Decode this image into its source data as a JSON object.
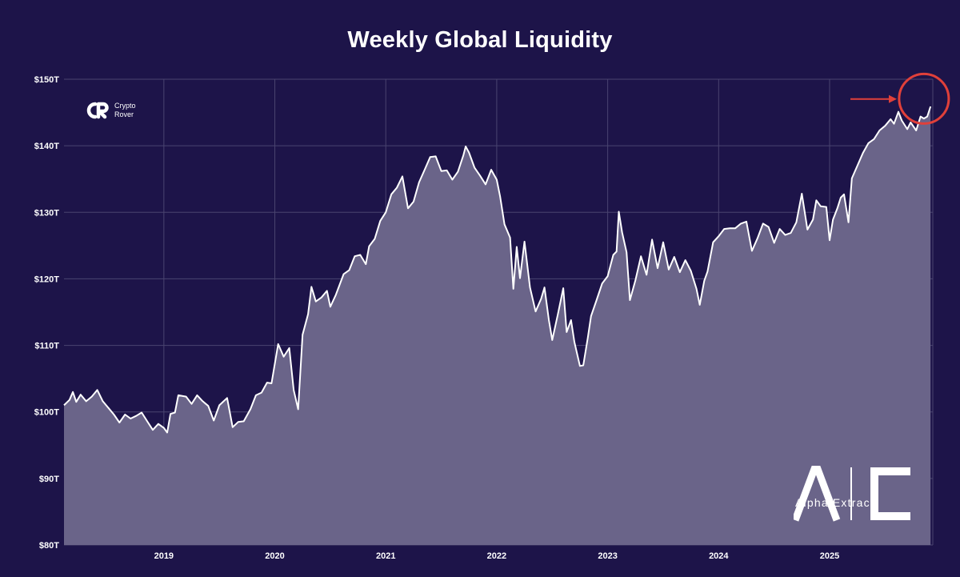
{
  "title": "Weekly Global Liquidity",
  "brand": {
    "crypto_rover_line1": "Crypto",
    "crypto_rover_line2": "Rover",
    "alpha_extract": "Alpha Extract"
  },
  "colors": {
    "background": "#1d1449",
    "fill": "#6a6489",
    "line": "#ffffff",
    "grid": "#4a4470",
    "annotation": "#e0403a"
  },
  "chart_data": {
    "type": "area",
    "title": "Weekly Global Liquidity",
    "xlabel": "",
    "ylabel": "",
    "ylim": [
      80,
      150
    ],
    "xlim": [
      2018.1,
      2025.93
    ],
    "grid": true,
    "y_ticks": [
      80,
      90,
      100,
      110,
      120,
      130,
      140,
      150
    ],
    "y_tick_labels": [
      "$80T",
      "$90T",
      "$100T",
      "$110T",
      "$120T",
      "$130T",
      "$140T",
      "$150T"
    ],
    "x_ticks": [
      2019,
      2020,
      2021,
      2022,
      2023,
      2024,
      2025
    ],
    "x_tick_labels": [
      "2019",
      "2020",
      "2021",
      "2022",
      "2023",
      "2024",
      "2025"
    ],
    "series": [
      {
        "values": [
          [
            2018.1,
            101.0
          ],
          [
            2018.15,
            101.8
          ],
          [
            2018.18,
            103.0
          ],
          [
            2018.21,
            101.5
          ],
          [
            2018.25,
            102.6
          ],
          [
            2018.3,
            101.6
          ],
          [
            2018.35,
            102.3
          ],
          [
            2018.4,
            103.3
          ],
          [
            2018.45,
            101.6
          ],
          [
            2018.5,
            100.6
          ],
          [
            2018.55,
            99.6
          ],
          [
            2018.6,
            98.4
          ],
          [
            2018.65,
            99.6
          ],
          [
            2018.7,
            99.0
          ],
          [
            2018.75,
            99.4
          ],
          [
            2018.8,
            99.9
          ],
          [
            2018.85,
            98.6
          ],
          [
            2018.9,
            97.3
          ],
          [
            2018.95,
            98.2
          ],
          [
            2019.0,
            97.6
          ],
          [
            2019.03,
            96.9
          ],
          [
            2019.06,
            99.7
          ],
          [
            2019.1,
            99.9
          ],
          [
            2019.13,
            102.5
          ],
          [
            2019.2,
            102.3
          ],
          [
            2019.25,
            101.2
          ],
          [
            2019.3,
            102.5
          ],
          [
            2019.35,
            101.6
          ],
          [
            2019.4,
            100.9
          ],
          [
            2019.45,
            98.7
          ],
          [
            2019.5,
            101.0
          ],
          [
            2019.57,
            102.1
          ],
          [
            2019.62,
            97.7
          ],
          [
            2019.67,
            98.5
          ],
          [
            2019.72,
            98.6
          ],
          [
            2019.78,
            100.4
          ],
          [
            2019.83,
            102.5
          ],
          [
            2019.88,
            102.9
          ],
          [
            2019.93,
            104.4
          ],
          [
            2019.97,
            104.3
          ],
          [
            2020.03,
            110.2
          ],
          [
            2020.08,
            108.3
          ],
          [
            2020.13,
            109.6
          ],
          [
            2020.17,
            103.3
          ],
          [
            2020.21,
            100.4
          ],
          [
            2020.25,
            111.6
          ],
          [
            2020.3,
            114.7
          ],
          [
            2020.33,
            118.8
          ],
          [
            2020.37,
            116.6
          ],
          [
            2020.42,
            117.2
          ],
          [
            2020.47,
            118.2
          ],
          [
            2020.5,
            115.8
          ],
          [
            2020.55,
            117.6
          ],
          [
            2020.62,
            120.7
          ],
          [
            2020.67,
            121.3
          ],
          [
            2020.72,
            123.4
          ],
          [
            2020.77,
            123.6
          ],
          [
            2020.82,
            122.2
          ],
          [
            2020.85,
            124.9
          ],
          [
            2020.9,
            126.0
          ],
          [
            2020.95,
            128.7
          ],
          [
            2021.0,
            130.0
          ],
          [
            2021.05,
            132.7
          ],
          [
            2021.1,
            133.7
          ],
          [
            2021.15,
            135.4
          ],
          [
            2021.2,
            130.6
          ],
          [
            2021.25,
            131.6
          ],
          [
            2021.3,
            134.5
          ],
          [
            2021.35,
            136.4
          ],
          [
            2021.4,
            138.3
          ],
          [
            2021.45,
            138.4
          ],
          [
            2021.5,
            136.2
          ],
          [
            2021.55,
            136.3
          ],
          [
            2021.6,
            134.9
          ],
          [
            2021.65,
            136.1
          ],
          [
            2021.7,
            138.6
          ],
          [
            2021.72,
            139.9
          ],
          [
            2021.75,
            139.0
          ],
          [
            2021.8,
            136.7
          ],
          [
            2021.85,
            135.5
          ],
          [
            2021.9,
            134.2
          ],
          [
            2021.95,
            136.4
          ],
          [
            2022.0,
            134.9
          ],
          [
            2022.03,
            132.4
          ],
          [
            2022.07,
            128.2
          ],
          [
            2022.12,
            126.2
          ],
          [
            2022.15,
            118.5
          ],
          [
            2022.18,
            124.8
          ],
          [
            2022.21,
            120.1
          ],
          [
            2022.25,
            125.6
          ],
          [
            2022.3,
            118.7
          ],
          [
            2022.35,
            115.1
          ],
          [
            2022.4,
            117.0
          ],
          [
            2022.43,
            118.7
          ],
          [
            2022.47,
            113.8
          ],
          [
            2022.5,
            110.8
          ],
          [
            2022.55,
            114.6
          ],
          [
            2022.6,
            118.6
          ],
          [
            2022.63,
            112.0
          ],
          [
            2022.67,
            113.8
          ],
          [
            2022.7,
            110.5
          ],
          [
            2022.75,
            106.9
          ],
          [
            2022.78,
            107.0
          ],
          [
            2022.82,
            111.1
          ],
          [
            2022.85,
            114.4
          ],
          [
            2022.9,
            116.8
          ],
          [
            2022.95,
            119.3
          ],
          [
            2023.0,
            120.4
          ],
          [
            2023.05,
            123.6
          ],
          [
            2023.08,
            124.1
          ],
          [
            2023.1,
            130.1
          ],
          [
            2023.13,
            127.0
          ],
          [
            2023.17,
            124.0
          ],
          [
            2023.2,
            116.8
          ],
          [
            2023.25,
            119.8
          ],
          [
            2023.3,
            123.4
          ],
          [
            2023.35,
            120.6
          ],
          [
            2023.4,
            125.9
          ],
          [
            2023.45,
            121.6
          ],
          [
            2023.5,
            125.5
          ],
          [
            2023.55,
            121.4
          ],
          [
            2023.6,
            123.3
          ],
          [
            2023.65,
            121.0
          ],
          [
            2023.7,
            122.8
          ],
          [
            2023.75,
            121.2
          ],
          [
            2023.8,
            118.5
          ],
          [
            2023.83,
            116.1
          ],
          [
            2023.87,
            119.7
          ],
          [
            2023.9,
            121.1
          ],
          [
            2023.95,
            125.5
          ],
          [
            2024.0,
            126.4
          ],
          [
            2024.05,
            127.5
          ],
          [
            2024.1,
            127.6
          ],
          [
            2024.15,
            127.6
          ],
          [
            2024.2,
            128.3
          ],
          [
            2024.25,
            128.6
          ],
          [
            2024.3,
            124.2
          ],
          [
            2024.35,
            126.1
          ],
          [
            2024.4,
            128.3
          ],
          [
            2024.45,
            127.8
          ],
          [
            2024.5,
            125.4
          ],
          [
            2024.55,
            127.5
          ],
          [
            2024.6,
            126.6
          ],
          [
            2024.65,
            126.9
          ],
          [
            2024.7,
            128.5
          ],
          [
            2024.75,
            132.8
          ],
          [
            2024.8,
            127.4
          ],
          [
            2024.85,
            128.9
          ],
          [
            2024.88,
            131.8
          ],
          [
            2024.92,
            130.9
          ],
          [
            2024.97,
            130.8
          ],
          [
            2025.0,
            125.8
          ],
          [
            2025.03,
            128.9
          ],
          [
            2025.07,
            130.6
          ],
          [
            2025.1,
            132.2
          ],
          [
            2025.13,
            132.7
          ],
          [
            2025.17,
            128.5
          ],
          [
            2025.2,
            135.1
          ],
          [
            2025.25,
            137.0
          ],
          [
            2025.3,
            138.9
          ],
          [
            2025.35,
            140.4
          ],
          [
            2025.4,
            141.0
          ],
          [
            2025.45,
            142.3
          ],
          [
            2025.5,
            143.0
          ],
          [
            2025.55,
            144.0
          ],
          [
            2025.58,
            143.3
          ],
          [
            2025.62,
            145.1
          ],
          [
            2025.65,
            143.8
          ],
          [
            2025.7,
            142.5
          ],
          [
            2025.73,
            143.5
          ],
          [
            2025.78,
            142.3
          ],
          [
            2025.82,
            144.4
          ],
          [
            2025.85,
            144.1
          ],
          [
            2025.88,
            144.4
          ],
          [
            2025.91,
            145.9
          ]
        ]
      }
    ],
    "annotations": [
      {
        "type": "arrow",
        "points_to": [
          2025.62,
          145.1
        ]
      },
      {
        "type": "circle",
        "center": [
          2025.85,
          145.5
        ]
      }
    ]
  }
}
